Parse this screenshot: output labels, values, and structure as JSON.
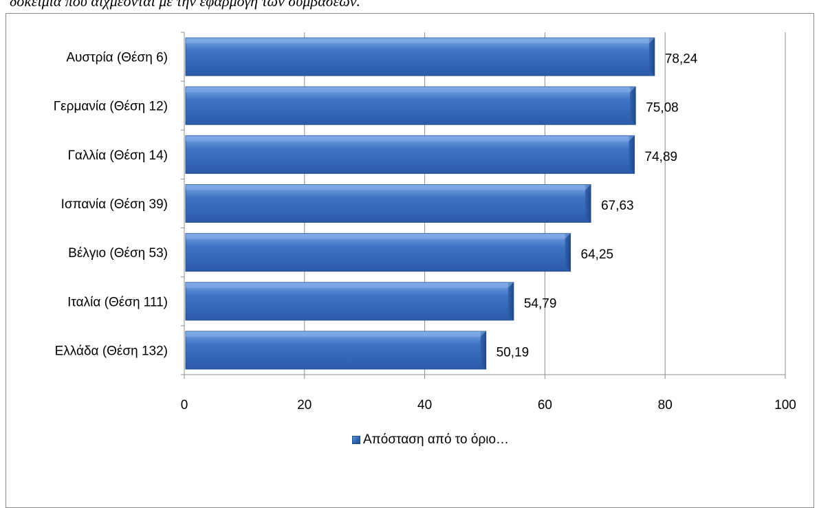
{
  "caption": "δοκείμια που αιχμέονται με την εφαρμογή των συμβάσεων.",
  "legend": {
    "label": "Απόσταση από το όριο…"
  },
  "colors": {
    "bar": "#3a6fc0",
    "bar_light": "#6f9fe0",
    "bar_dark": "#24508f",
    "grid": "#8c8c8c"
  },
  "chart_data": {
    "type": "bar",
    "orientation": "horizontal",
    "categories": [
      "Αυστρία (Θέση 6)",
      "Γερμανία (Θέση 12)",
      "Γαλλία (Θέση 14)",
      "Ισπανία (Θέση 39)",
      "Βέλγιο (Θέση 53)",
      "Ιταλία (Θέση 111)",
      "Ελλάδα (Θέση 132)"
    ],
    "series": [
      {
        "name": "Απόσταση από το όριο…",
        "values": [
          78.24,
          75.08,
          74.89,
          67.63,
          64.25,
          54.79,
          50.19
        ],
        "labels": [
          "78,24",
          "75,08",
          "74,89",
          "67,63",
          "64,25",
          "54,79",
          "50,19"
        ]
      }
    ],
    "xlim": [
      0,
      100
    ],
    "xticks": [
      0,
      20,
      40,
      60,
      80,
      100
    ],
    "grid": true,
    "legend_position": "bottom"
  }
}
